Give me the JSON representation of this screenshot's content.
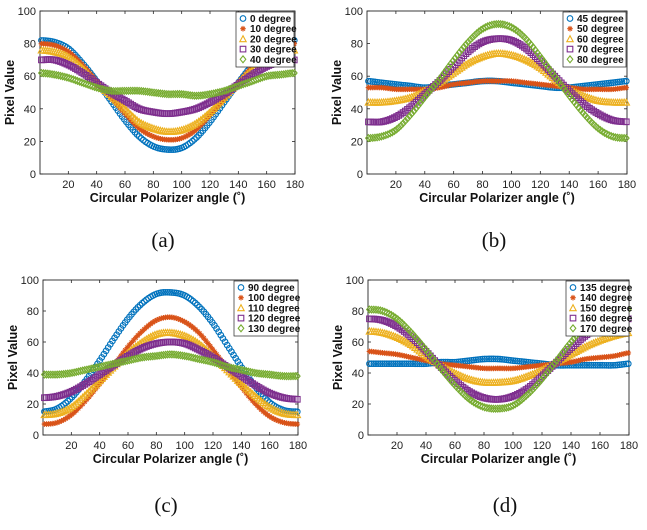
{
  "chart_data": [
    {
      "type": "scatter",
      "caption": "(a)",
      "xlabel": "Circular Polarizer angle (˚)",
      "ylabel": "Pixel Value",
      "xlim": [
        0,
        180
      ],
      "ylim": [
        0,
        100
      ],
      "xticks": [
        20,
        40,
        60,
        80,
        100,
        120,
        140,
        160,
        180
      ],
      "yticks": [
        0,
        20,
        40,
        60,
        80,
        100
      ],
      "legend_position": "top-right",
      "series": [
        {
          "name": "0 degree",
          "marker": "circle",
          "color": "#0072BD",
          "x": [
            0,
            10,
            20,
            30,
            40,
            50,
            60,
            70,
            80,
            90,
            100,
            110,
            120,
            130,
            140,
            150,
            160,
            170,
            180
          ],
          "values": [
            82,
            81,
            77,
            68,
            57,
            45,
            33,
            23,
            17,
            15,
            16,
            22,
            32,
            44,
            56,
            67,
            76,
            81,
            82
          ]
        },
        {
          "name": "10 degree",
          "marker": "asterisk",
          "color": "#D95319",
          "x": [
            0,
            10,
            20,
            30,
            40,
            50,
            60,
            70,
            80,
            90,
            100,
            110,
            120,
            130,
            140,
            150,
            160,
            170,
            180
          ],
          "values": [
            80,
            79,
            75,
            67,
            57,
            47,
            37,
            28,
            23,
            21,
            22,
            27,
            36,
            46,
            56,
            66,
            74,
            78,
            80
          ]
        },
        {
          "name": "20 degree",
          "marker": "triangle",
          "color": "#EDB120",
          "x": [
            0,
            10,
            20,
            30,
            40,
            50,
            60,
            70,
            80,
            90,
            100,
            110,
            120,
            130,
            140,
            150,
            160,
            170,
            180
          ],
          "values": [
            76,
            75,
            72,
            65,
            56,
            48,
            40,
            32,
            28,
            26,
            27,
            31,
            38,
            47,
            56,
            64,
            71,
            75,
            76
          ]
        },
        {
          "name": "30 degree",
          "marker": "square",
          "color": "#7E2F8E",
          "x": [
            0,
            10,
            20,
            30,
            40,
            50,
            60,
            70,
            80,
            90,
            100,
            110,
            120,
            130,
            140,
            150,
            160,
            170,
            180
          ],
          "values": [
            70,
            70,
            67,
            62,
            56,
            50,
            45,
            40,
            38,
            37,
            38,
            40,
            44,
            49,
            55,
            61,
            66,
            69,
            70
          ]
        },
        {
          "name": "40 degree",
          "marker": "diamond",
          "color": "#77AC30",
          "x": [
            0,
            10,
            20,
            30,
            40,
            50,
            60,
            70,
            80,
            90,
            100,
            110,
            120,
            130,
            140,
            150,
            160,
            170,
            180
          ],
          "values": [
            62,
            61,
            59,
            56,
            53,
            51,
            51,
            51,
            50,
            49,
            49,
            48,
            49,
            51,
            54,
            57,
            60,
            61,
            62
          ]
        }
      ]
    },
    {
      "type": "scatter",
      "caption": "(b)",
      "xlabel": "Circular Polarizer angle (˚)",
      "ylabel": "Pixel Value",
      "xlim": [
        0,
        180
      ],
      "ylim": [
        0,
        100
      ],
      "xticks": [
        20,
        40,
        60,
        80,
        100,
        120,
        140,
        160,
        180
      ],
      "yticks": [
        0,
        20,
        40,
        60,
        80,
        100
      ],
      "legend_position": "top-right",
      "series": [
        {
          "name": "45 degree",
          "marker": "circle",
          "color": "#0072BD",
          "x": [
            0,
            10,
            20,
            30,
            40,
            50,
            60,
            70,
            80,
            90,
            100,
            110,
            120,
            130,
            140,
            150,
            160,
            170,
            180
          ],
          "values": [
            57,
            56,
            55,
            54,
            53,
            54,
            55,
            56,
            57,
            57,
            56,
            55,
            54,
            53,
            53,
            54,
            55,
            56,
            57
          ]
        },
        {
          "name": "50 degree",
          "marker": "asterisk",
          "color": "#D95319",
          "x": [
            0,
            10,
            20,
            30,
            40,
            50,
            60,
            70,
            80,
            90,
            100,
            110,
            120,
            130,
            140,
            150,
            160,
            170,
            180
          ],
          "values": [
            53,
            53,
            52,
            52,
            52,
            53,
            55,
            56,
            57,
            57,
            57,
            56,
            55,
            54,
            53,
            52,
            52,
            52,
            53
          ]
        },
        {
          "name": "60 degree",
          "marker": "triangle",
          "color": "#EDB120",
          "x": [
            0,
            10,
            20,
            30,
            40,
            50,
            60,
            70,
            80,
            90,
            100,
            110,
            120,
            130,
            140,
            150,
            160,
            170,
            180
          ],
          "values": [
            44,
            44,
            45,
            47,
            51,
            56,
            62,
            68,
            72,
            74,
            73,
            70,
            65,
            58,
            52,
            48,
            45,
            44,
            44
          ]
        },
        {
          "name": "70 degree",
          "marker": "square",
          "color": "#7E2F8E",
          "x": [
            0,
            10,
            20,
            30,
            40,
            50,
            60,
            70,
            80,
            90,
            100,
            110,
            120,
            130,
            140,
            150,
            160,
            170,
            180
          ],
          "values": [
            32,
            32,
            35,
            41,
            49,
            57,
            66,
            75,
            81,
            83,
            82,
            77,
            69,
            60,
            51,
            43,
            37,
            33,
            32
          ]
        },
        {
          "name": "80 degree",
          "marker": "diamond",
          "color": "#77AC30",
          "x": [
            0,
            10,
            20,
            30,
            40,
            50,
            60,
            70,
            80,
            90,
            100,
            110,
            120,
            130,
            140,
            150,
            160,
            170,
            180
          ],
          "values": [
            22,
            23,
            27,
            36,
            47,
            58,
            70,
            81,
            89,
            92,
            90,
            83,
            72,
            60,
            48,
            37,
            28,
            23,
            22
          ]
        }
      ]
    },
    {
      "type": "scatter",
      "caption": "(c)",
      "xlabel": "Circular Polarizer angle (˚)",
      "ylabel": "Pixel Value",
      "xlim": [
        0,
        180
      ],
      "ylim": [
        0,
        100
      ],
      "xticks": [
        20,
        40,
        60,
        80,
        100,
        120,
        140,
        160,
        180
      ],
      "yticks": [
        0,
        20,
        40,
        60,
        80,
        100
      ],
      "legend_position": "top-right",
      "series": [
        {
          "name": "90 degree",
          "marker": "circle",
          "color": "#0072BD",
          "x": [
            0,
            10,
            20,
            30,
            40,
            50,
            60,
            70,
            80,
            90,
            100,
            110,
            120,
            130,
            140,
            150,
            160,
            170,
            180
          ],
          "values": [
            15,
            17,
            24,
            35,
            48,
            62,
            75,
            85,
            91,
            92,
            90,
            83,
            72,
            58,
            44,
            31,
            21,
            16,
            15
          ]
        },
        {
          "name": "100 degree",
          "marker": "asterisk",
          "color": "#D95319",
          "x": [
            0,
            10,
            20,
            30,
            40,
            50,
            60,
            70,
            80,
            90,
            100,
            110,
            120,
            130,
            140,
            150,
            160,
            170,
            180
          ],
          "values": [
            7,
            8,
            13,
            22,
            33,
            45,
            57,
            67,
            74,
            76,
            73,
            66,
            55,
            43,
            31,
            20,
            12,
            8,
            7
          ]
        },
        {
          "name": "110 degree",
          "marker": "triangle",
          "color": "#EDB120",
          "x": [
            0,
            10,
            20,
            30,
            40,
            50,
            60,
            70,
            80,
            90,
            100,
            110,
            120,
            130,
            140,
            150,
            160,
            170,
            180
          ],
          "values": [
            13,
            14,
            18,
            26,
            35,
            44,
            53,
            60,
            65,
            66,
            64,
            59,
            51,
            42,
            33,
            25,
            18,
            14,
            13
          ]
        },
        {
          "name": "120 degree",
          "marker": "square",
          "color": "#7E2F8E",
          "x": [
            0,
            10,
            20,
            30,
            40,
            50,
            60,
            70,
            80,
            90,
            100,
            110,
            120,
            130,
            140,
            150,
            160,
            170,
            180
          ],
          "values": [
            24,
            25,
            28,
            33,
            39,
            45,
            51,
            56,
            59,
            60,
            59,
            55,
            50,
            44,
            38,
            32,
            27,
            24,
            23
          ]
        },
        {
          "name": "130 degree",
          "marker": "diamond",
          "color": "#77AC30",
          "x": [
            0,
            10,
            20,
            30,
            40,
            50,
            60,
            70,
            80,
            90,
            100,
            110,
            120,
            130,
            140,
            150,
            160,
            170,
            180
          ],
          "values": [
            39,
            39,
            40,
            42,
            44,
            46,
            48,
            50,
            51,
            52,
            51,
            49,
            47,
            44,
            42,
            40,
            39,
            38,
            38
          ]
        }
      ]
    },
    {
      "type": "scatter",
      "caption": "(d)",
      "xlabel": "Circular Polarizer angle (˚)",
      "ylabel": "Pixel Value",
      "xlim": [
        0,
        180
      ],
      "ylim": [
        0,
        100
      ],
      "xticks": [
        20,
        40,
        60,
        80,
        100,
        120,
        140,
        160,
        180
      ],
      "yticks": [
        0,
        20,
        40,
        60,
        80,
        100
      ],
      "legend_position": "top-right",
      "series": [
        {
          "name": "135 degree",
          "marker": "circle",
          "color": "#0072BD",
          "x": [
            0,
            10,
            20,
            30,
            40,
            50,
            60,
            70,
            80,
            90,
            100,
            110,
            120,
            130,
            140,
            150,
            160,
            170,
            180
          ],
          "values": [
            46,
            46,
            46,
            46,
            46,
            47,
            47,
            48,
            49,
            49,
            48,
            47,
            46,
            45,
            45,
            45,
            45,
            45,
            46
          ]
        },
        {
          "name": "140 degree",
          "marker": "asterisk",
          "color": "#D95319",
          "x": [
            0,
            10,
            20,
            30,
            40,
            50,
            60,
            70,
            80,
            90,
            100,
            110,
            120,
            130,
            140,
            150,
            160,
            170,
            180
          ],
          "values": [
            54,
            53,
            52,
            50,
            48,
            46,
            45,
            44,
            43,
            43,
            43,
            44,
            45,
            46,
            47,
            49,
            50,
            51,
            53
          ]
        },
        {
          "name": "150 degree",
          "marker": "triangle",
          "color": "#EDB120",
          "x": [
            0,
            10,
            20,
            30,
            40,
            50,
            60,
            70,
            80,
            90,
            100,
            110,
            120,
            130,
            140,
            150,
            160,
            170,
            180
          ],
          "values": [
            67,
            66,
            63,
            58,
            51,
            45,
            40,
            36,
            34,
            34,
            35,
            38,
            42,
            47,
            52,
            57,
            61,
            64,
            66
          ]
        },
        {
          "name": "160 degree",
          "marker": "square",
          "color": "#7E2F8E",
          "x": [
            0,
            10,
            20,
            30,
            40,
            50,
            60,
            70,
            80,
            90,
            100,
            110,
            120,
            130,
            140,
            150,
            160,
            170,
            180
          ],
          "values": [
            75,
            74,
            70,
            63,
            54,
            44,
            35,
            28,
            24,
            23,
            25,
            30,
            38,
            47,
            56,
            64,
            70,
            73,
            75
          ]
        },
        {
          "name": "170 degree",
          "marker": "diamond",
          "color": "#77AC30",
          "x": [
            0,
            10,
            20,
            30,
            40,
            50,
            60,
            70,
            80,
            90,
            100,
            110,
            120,
            130,
            140,
            150,
            160,
            170,
            180
          ],
          "values": [
            81,
            80,
            75,
            66,
            55,
            43,
            32,
            23,
            18,
            17,
            19,
            26,
            36,
            48,
            60,
            70,
            77,
            80,
            81
          ]
        }
      ]
    }
  ]
}
